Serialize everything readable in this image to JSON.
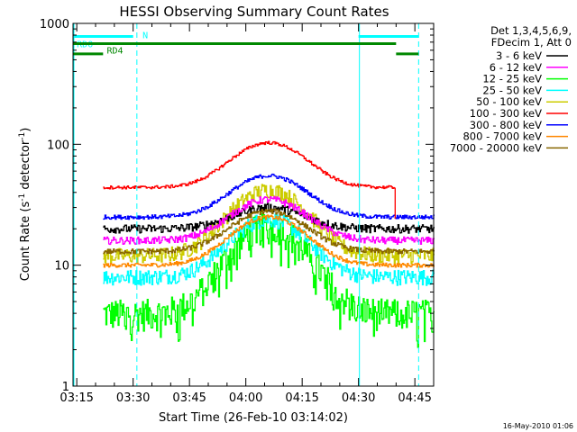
{
  "chart_data": {
    "type": "line",
    "title": "HESSI Observing Summary Count Rates",
    "xlabel": "Start Time (26-Feb-10 03:14:02)",
    "ylabel_main": "Count Rate (s",
    "ylabel_sup1": "-1",
    "ylabel_mid": " detector",
    "ylabel_sup2": "-1",
    "ylabel_end": ")",
    "y_scale": "log",
    "ylim": [
      1,
      1000
    ],
    "xlim_minutes": [
      0,
      96
    ],
    "x_tick_labels": [
      "03:15",
      "03:30",
      "03:45",
      "04:00",
      "04:15",
      "04:30",
      "04:45"
    ],
    "x_tick_minutes": [
      1,
      16,
      31,
      46,
      61,
      76,
      91
    ],
    "y_tick_labels": [
      "1",
      "10",
      "100",
      "1000"
    ],
    "y_tick_values": [
      1,
      10,
      100,
      1000
    ],
    "legend": {
      "header1": "Det 1,3,4,5,6,9,",
      "header2": "FDecim 1, Att 0",
      "position": "top-right"
    },
    "series": [
      {
        "name": "3 - 6 keV",
        "color": "#000000",
        "start": 8.0,
        "end": 97.0,
        "base": 20,
        "peak": 30,
        "noise": 0.08
      },
      {
        "name": "6 - 12 keV",
        "color": "#ff00ff",
        "start": 8.0,
        "end": 97.0,
        "base": 16,
        "peak": 35,
        "noise": 0.07
      },
      {
        "name": "12 - 25 keV",
        "color": "#00ff00",
        "start": 8.0,
        "end": 97.0,
        "base": 4,
        "peak": 21,
        "noise": 0.3
      },
      {
        "name": "25 - 50 keV",
        "color": "#00ffff",
        "start": 8.0,
        "end": 97.0,
        "base": 8,
        "peak": 24,
        "noise": 0.15
      },
      {
        "name": "50 - 100 keV",
        "color": "#cccc00",
        "start": 8.0,
        "end": 97.0,
        "base": 12,
        "peak": 42,
        "noise": 0.15
      },
      {
        "name": "100 - 300 keV",
        "color": "#ff0000",
        "start": 8.0,
        "end": 85.5,
        "base": 44,
        "peak": 103,
        "noise": 0.03
      },
      {
        "name": "300 - 800 keV",
        "color": "#0000ff",
        "start": 8.0,
        "end": 97.0,
        "base": 25,
        "peak": 55,
        "noise": 0.04
      },
      {
        "name": "800 - 7000 keV",
        "color": "#ff8800",
        "start": 8.0,
        "end": 97.0,
        "base": 10,
        "peak": 25,
        "noise": 0.04
      },
      {
        "name": "7000 - 20000 keV",
        "color": "#886600",
        "start": 8.0,
        "end": 97.0,
        "base": 13,
        "peak": 28,
        "noise": 0.05
      }
    ],
    "flags": [
      {
        "label": "RD0",
        "color": "#00ffff",
        "y": 780,
        "segments": [
          [
            0,
            16
          ],
          [
            76,
            92
          ]
        ],
        "extra_label": "N",
        "extra_at": 18.5
      },
      {
        "label": "RD4",
        "color": "#008800",
        "y": 680,
        "segments": [
          [
            0,
            86
          ]
        ]
      },
      {
        "label": "",
        "color": "#008800",
        "y": 560,
        "segments": [
          [
            0,
            8
          ],
          [
            86,
            92
          ]
        ]
      }
    ],
    "verticals": {
      "solid": [
        0,
        76
      ],
      "dashed": [
        17,
        92
      ],
      "color": "#00ffff"
    },
    "grid": false
  },
  "timestamp": "16-May-2010 01:06"
}
